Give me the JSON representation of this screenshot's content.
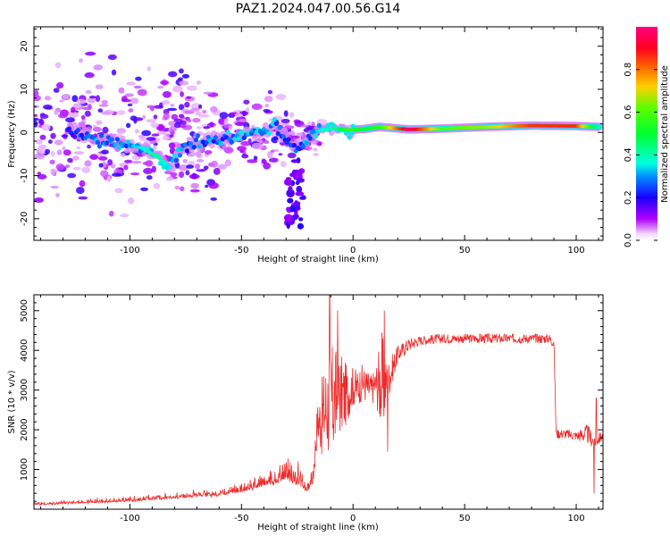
{
  "figure_title": "PAZ1.2024.047.00.56.G14",
  "colorbar": {
    "label": "Normalized spectral amplitude",
    "ticks": [
      "0.0",
      "0.2",
      "0.4",
      "0.6",
      "0.8"
    ],
    "tick_values": [
      0.0,
      0.2,
      0.4,
      0.6,
      0.8
    ],
    "range": [
      0,
      1
    ],
    "colormap": "gist_rainbow_r"
  },
  "chart_data": [
    {
      "type": "heatmap",
      "title": "",
      "xlabel": "Height of straight line (km)",
      "ylabel": "Frequency (Hz)",
      "xlim": [
        -143,
        112
      ],
      "ylim": [
        -25,
        24.5
      ],
      "xticks": [
        -100,
        -50,
        0,
        50,
        100
      ],
      "xtick_labels": [
        "-100",
        "-50",
        "0",
        "50",
        "100"
      ],
      "yticks": [
        -20,
        -10,
        0,
        10,
        20
      ],
      "ytick_labels": [
        "-20",
        "-10",
        "0",
        "10",
        "20"
      ],
      "ridge": [
        {
          "x": -125,
          "y": 0.5,
          "amp": 0.22
        },
        {
          "x": -115,
          "y": -1.5,
          "amp": 0.28
        },
        {
          "x": -105,
          "y": -2.5,
          "amp": 0.3
        },
        {
          "x": -95,
          "y": -3.5,
          "amp": 0.35
        },
        {
          "x": -88,
          "y": -5.5,
          "amp": 0.42
        },
        {
          "x": -82,
          "y": -8.0,
          "amp": 0.33
        },
        {
          "x": -75,
          "y": -3.0,
          "amp": 0.26
        },
        {
          "x": -65,
          "y": -2.0,
          "amp": 0.28
        },
        {
          "x": -55,
          "y": -1.0,
          "amp": 0.3
        },
        {
          "x": -45,
          "y": 0.0,
          "amp": 0.33
        },
        {
          "x": -35,
          "y": 1.0,
          "amp": 0.3
        },
        {
          "x": -25,
          "y": -3.5,
          "amp": 0.26
        },
        {
          "x": -15,
          "y": 0.5,
          "amp": 0.35
        },
        {
          "x": -8,
          "y": 1.0,
          "amp": 0.42
        },
        {
          "x": -3,
          "y": 0.6,
          "amp": 0.55
        },
        {
          "x": 5,
          "y": 0.8,
          "amp": 0.5
        },
        {
          "x": 12,
          "y": 1.3,
          "amp": 0.55
        },
        {
          "x": 25,
          "y": 0.7,
          "amp": 0.98
        },
        {
          "x": 40,
          "y": 0.9,
          "amp": 0.6
        },
        {
          "x": 60,
          "y": 1.3,
          "amp": 0.66
        },
        {
          "x": 80,
          "y": 1.6,
          "amp": 0.86
        },
        {
          "x": 100,
          "y": 1.5,
          "amp": 0.86
        },
        {
          "x": 110,
          "y": 1.3,
          "amp": 0.4
        }
      ]
    },
    {
      "type": "line",
      "title": "",
      "xlabel": "Height of straight line (km)",
      "ylabel": "SNR (10 * v/v)",
      "xlim": [
        -143,
        112
      ],
      "ylim": [
        0,
        5400
      ],
      "xticks": [
        -100,
        -50,
        0,
        50,
        100
      ],
      "xtick_labels": [
        "-100",
        "-50",
        "0",
        "50",
        "100"
      ],
      "yticks": [
        1000,
        2000,
        3000,
        4000,
        5000
      ],
      "ytick_labels": [
        "1000",
        "2000",
        "3000",
        "4000",
        "5000"
      ],
      "color": "#ee2b2b",
      "baseline": {
        "x": [
          -143,
          -120,
          -100,
          -80,
          -60,
          -50,
          -40,
          -30,
          -25,
          -20,
          -18,
          -16,
          -14,
          -12,
          -10,
          -8,
          -6,
          -4,
          -2,
          0,
          2,
          4,
          6,
          8,
          10,
          12,
          14,
          16,
          18,
          20,
          25,
          30,
          40,
          50,
          60,
          70,
          80,
          88,
          90,
          91,
          92,
          95,
          100,
          105,
          108,
          112
        ],
        "y": [
          120,
          170,
          220,
          300,
          380,
          480,
          650,
          820,
          700,
          500,
          800,
          2200,
          2300,
          2600,
          2700,
          2700,
          2900,
          2850,
          2950,
          3100,
          3050,
          3200,
          3100,
          3000,
          3150,
          3200,
          3100,
          3300,
          3600,
          3900,
          4150,
          4250,
          4300,
          4300,
          4300,
          4300,
          4300,
          4300,
          4200,
          1900,
          1900,
          1900,
          1850,
          1900,
          1700,
          1850
        ]
      },
      "noise": {
        "x": [
          -143,
          -60,
          -40,
          -25,
          -20,
          -16,
          -14,
          -12,
          -10,
          -8,
          -6,
          -4,
          -2,
          0,
          5,
          10,
          13,
          15,
          20,
          30,
          88,
          90,
          91,
          100,
          105,
          112
        ],
        "amp": [
          60,
          120,
          250,
          400,
          300,
          500,
          1000,
          1300,
          1500,
          1400,
          1100,
          900,
          650,
          500,
          450,
          400,
          1400,
          550,
          220,
          120,
          120,
          150,
          120,
          120,
          250,
          120
        ]
      },
      "spikes": [
        {
          "x": -10.5,
          "y": 5400
        },
        {
          "x": -7,
          "y": 5000
        },
        {
          "x": 14,
          "y": 5000
        },
        {
          "x": 15.5,
          "y": 1450
        },
        {
          "x": 108,
          "y": 400
        },
        {
          "x": 109,
          "y": 2800
        }
      ]
    }
  ]
}
